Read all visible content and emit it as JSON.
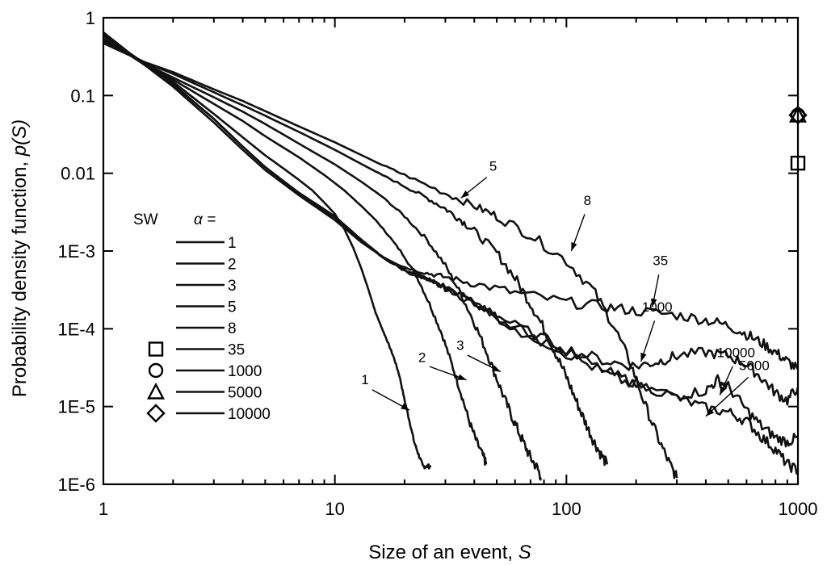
{
  "chart_data": {
    "type": "line",
    "title": "",
    "xlabel": "Size of an event, ",
    "xlabel_var": "S",
    "ylabel": "Probability density function, ",
    "ylabel_var": "p(S)",
    "ylabel_close": "",
    "x_scale": "log",
    "y_scale": "log",
    "xlim": [
      1,
      1000
    ],
    "ylim": [
      1e-06,
      1
    ],
    "x_ticks": [
      {
        "value": 1,
        "label": "1"
      },
      {
        "value": 10,
        "label": "10"
      },
      {
        "value": 100,
        "label": "100"
      },
      {
        "value": 1000,
        "label": "1000"
      }
    ],
    "y_ticks": [
      {
        "value": 1,
        "label": "1"
      },
      {
        "value": 0.1,
        "label": "0.1"
      },
      {
        "value": 0.01,
        "label": "0.01"
      },
      {
        "value": 0.001,
        "label": "1E-3"
      },
      {
        "value": 0.0001,
        "label": "1E-4"
      },
      {
        "value": 1e-05,
        "label": "1E-5"
      },
      {
        "value": 1e-06,
        "label": "1E-6"
      }
    ],
    "grid": false,
    "legend": {
      "placement": "bottom-left",
      "header_left": "SW",
      "header_right": "α =",
      "entries": [
        {
          "label": "1",
          "marker": "line"
        },
        {
          "label": "2",
          "marker": "line"
        },
        {
          "label": "3",
          "marker": "line"
        },
        {
          "label": "5",
          "marker": "line"
        },
        {
          "label": "8",
          "marker": "line"
        },
        {
          "label": "35",
          "marker": "square"
        },
        {
          "label": "1000",
          "marker": "circle"
        },
        {
          "label": "5000",
          "marker": "triangle"
        },
        {
          "label": "10000",
          "marker": "diamond"
        }
      ]
    },
    "series": [
      {
        "name": "1",
        "x": [
          1,
          1.5,
          2,
          3,
          4,
          5,
          6,
          7,
          8,
          9,
          10,
          11,
          12,
          13,
          14,
          15,
          16,
          17,
          18,
          19,
          20,
          21,
          22,
          23,
          24,
          25,
          26
        ],
        "y": [
          0.6,
          0.26,
          0.15,
          0.058,
          0.029,
          0.017,
          0.0115,
          0.0082,
          0.006,
          0.0042,
          0.003,
          0.0019,
          0.0011,
          0.0006,
          0.00031,
          0.00016,
          0.0001,
          6.5e-05,
          4.2e-05,
          2.5e-05,
          1.2e-05,
          6.5e-06,
          3.5e-06,
          2.4e-06,
          1.7e-06,
          1.7e-06,
          1.7e-06
        ]
      },
      {
        "name": "2",
        "x": [
          1,
          1.5,
          2,
          3,
          4,
          5,
          7,
          9,
          11,
          13,
          15,
          17,
          20,
          23,
          26,
          29,
          32,
          35,
          38,
          41,
          44,
          45
        ],
        "y": [
          0.55,
          0.25,
          0.16,
          0.078,
          0.047,
          0.03,
          0.016,
          0.0095,
          0.006,
          0.0038,
          0.0025,
          0.0016,
          0.00085,
          0.00042,
          0.00019,
          8.5e-05,
          3.5e-05,
          1.5e-05,
          6.5e-06,
          3.5e-06,
          2.2e-06,
          1.8e-06
        ]
      },
      {
        "name": "3",
        "x": [
          1,
          1.5,
          2,
          3,
          4,
          5,
          7,
          10,
          13,
          16,
          20,
          25,
          30,
          35,
          40,
          45,
          50,
          55,
          60,
          65,
          70,
          75,
          78
        ],
        "y": [
          0.52,
          0.26,
          0.17,
          0.095,
          0.062,
          0.043,
          0.024,
          0.013,
          0.0078,
          0.005,
          0.0028,
          0.0014,
          0.00065,
          0.00028,
          0.00012,
          5.2e-05,
          2.3e-05,
          1.1e-05,
          6e-06,
          3.5e-06,
          2.2e-06,
          1.6e-06,
          1.2e-06
        ]
      },
      {
        "name": "5",
        "x": [
          1,
          1.5,
          2,
          3,
          4,
          5,
          7,
          10,
          15,
          20,
          25,
          30,
          35,
          40,
          50,
          60,
          70,
          80,
          90,
          100,
          110,
          120,
          130,
          140,
          150
        ],
        "y": [
          0.5,
          0.27,
          0.19,
          0.11,
          0.075,
          0.055,
          0.034,
          0.02,
          0.0105,
          0.0068,
          0.0048,
          0.0035,
          0.0025,
          0.0018,
          0.00095,
          0.00045,
          0.00021,
          0.0001,
          4.8e-05,
          2.4e-05,
          1.2e-05,
          6.5e-06,
          3.8e-06,
          2.5e-06,
          1.8e-06
        ]
      },
      {
        "name": "8",
        "x": [
          1,
          1.5,
          2,
          3,
          4,
          5,
          7,
          10,
          15,
          20,
          30,
          40,
          50,
          70,
          100,
          130,
          160,
          190,
          220,
          250,
          280,
          300
        ],
        "y": [
          0.47,
          0.27,
          0.2,
          0.12,
          0.085,
          0.063,
          0.04,
          0.025,
          0.014,
          0.0095,
          0.0055,
          0.0038,
          0.0028,
          0.0016,
          0.00075,
          0.00032,
          0.00011,
          3.5e-05,
          1e-05,
          3.8e-06,
          1.8e-06,
          1.2e-06
        ]
      },
      {
        "name": "35",
        "x": [
          1,
          1.5,
          2,
          3,
          4,
          5,
          7,
          10,
          13,
          16,
          20,
          25,
          30,
          40,
          60,
          100,
          150,
          200,
          300,
          400,
          500,
          600,
          700,
          800,
          900,
          1000
        ],
        "y": [
          0.65,
          0.25,
          0.13,
          0.045,
          0.02,
          0.011,
          0.0052,
          0.0025,
          0.0013,
          0.00085,
          0.00062,
          0.00052,
          0.00046,
          0.00038,
          0.00029,
          0.00022,
          0.00019,
          0.00017,
          0.00015,
          0.00013,
          0.00011,
          8.5e-05,
          6.5e-05,
          5e-05,
          3.8e-05,
          3e-05
        ]
      },
      {
        "name": "1000",
        "x": [
          1,
          1.5,
          2,
          3,
          4,
          5,
          7,
          10,
          13,
          16,
          20,
          25,
          30,
          40,
          60,
          100,
          150,
          200,
          250,
          300,
          400,
          500,
          600,
          700,
          800,
          900,
          1000
        ],
        "y": [
          0.6,
          0.25,
          0.14,
          0.05,
          0.022,
          0.012,
          0.0056,
          0.0028,
          0.0014,
          0.00085,
          0.00058,
          0.00044,
          0.00035,
          0.00022,
          0.00011,
          5.5e-05,
          3.8e-05,
          3.3e-05,
          3.8e-05,
          4.5e-05,
          5e-05,
          4.5e-05,
          3.5e-05,
          2.3e-05,
          1.5e-05,
          1.2e-05,
          1.8e-05
        ]
      },
      {
        "name": "5000",
        "x": [
          1,
          1.5,
          2,
          3,
          4,
          5,
          7,
          10,
          13,
          16,
          20,
          25,
          30,
          40,
          60,
          100,
          150,
          200,
          300,
          400,
          500,
          600,
          700,
          800,
          900,
          1000
        ],
        "y": [
          0.62,
          0.25,
          0.14,
          0.05,
          0.022,
          0.012,
          0.0055,
          0.0027,
          0.0014,
          0.00083,
          0.00056,
          0.00042,
          0.00033,
          0.00021,
          0.0001,
          5e-05,
          2.8e-05,
          2e-05,
          1.3e-05,
          9.5e-06,
          8.5e-06,
          6.5e-06,
          4e-06,
          2.8e-06,
          1.8e-06,
          1.5e-06
        ]
      },
      {
        "name": "10000",
        "x": [
          1,
          1.5,
          2,
          3,
          4,
          5,
          7,
          10,
          13,
          16,
          20,
          25,
          30,
          40,
          60,
          100,
          150,
          200,
          300,
          400,
          450,
          500,
          600,
          700,
          800,
          900,
          1000
        ],
        "y": [
          0.6,
          0.25,
          0.14,
          0.05,
          0.022,
          0.012,
          0.0055,
          0.0027,
          0.0014,
          0.00084,
          0.00057,
          0.00043,
          0.00034,
          0.00022,
          0.000105,
          4.8e-05,
          2.6e-05,
          1.8e-05,
          1.4e-05,
          1.6e-05,
          2.2e-05,
          1.8e-05,
          9e-06,
          5.5e-06,
          4e-06,
          3.5e-06,
          4e-06
        ]
      }
    ],
    "markers_at_1000": [
      {
        "label": "35",
        "shape": "square",
        "x": 1000,
        "y": 0.0135
      },
      {
        "label": "1000",
        "shape": "circle",
        "x": 1000,
        "y": 0.056
      },
      {
        "label": "5000",
        "shape": "triangle",
        "x": 1000,
        "y": 0.056
      },
      {
        "label": "10000",
        "shape": "diamond",
        "x": 1000,
        "y": 0.056
      }
    ],
    "annotations": [
      {
        "text": "1",
        "x": 21,
        "y": 9e-06
      },
      {
        "text": "2",
        "x": 37,
        "y": 2.2e-05
      },
      {
        "text": "3",
        "x": 52,
        "y": 2.8e-05
      },
      {
        "text": "5",
        "x": 35,
        "y": 0.0048
      },
      {
        "text": "8",
        "x": 105,
        "y": 0.001
      },
      {
        "text": "35",
        "x": 235,
        "y": 0.00019
      },
      {
        "text": "1000",
        "x": 210,
        "y": 3.8e-05
      },
      {
        "text": "10000",
        "x": 460,
        "y": 1.4e-05
      },
      {
        "text": "5000",
        "x": 400,
        "y": 7.5e-06
      }
    ]
  }
}
